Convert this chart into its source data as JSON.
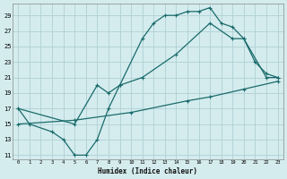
{
  "xlabel": "Humidex (Indice chaleur)",
  "bg_color": "#d4ecee",
  "grid_color": "#b0d0d4",
  "line_color": "#1a6b6b",
  "xlim": [
    -0.5,
    23.5
  ],
  "ylim": [
    10.5,
    30.5
  ],
  "xticks": [
    0,
    1,
    2,
    3,
    4,
    5,
    6,
    7,
    8,
    9,
    10,
    11,
    12,
    13,
    14,
    15,
    16,
    17,
    18,
    19,
    20,
    21,
    22,
    23
  ],
  "yticks": [
    11,
    13,
    15,
    17,
    19,
    21,
    23,
    25,
    27,
    29
  ],
  "line1_x": [
    0,
    1,
    3,
    4,
    5,
    6,
    7,
    8,
    9,
    11,
    12,
    13,
    14,
    15,
    16,
    17,
    18,
    19,
    20,
    21,
    22,
    23
  ],
  "line1_y": [
    17,
    15,
    14,
    13,
    11,
    11,
    13,
    17,
    20,
    26,
    28,
    29,
    29,
    29.5,
    29.5,
    30,
    28,
    27.5,
    26,
    23,
    21.5,
    21
  ],
  "line2_x": [
    0,
    5,
    7,
    8,
    9,
    11,
    14,
    17,
    19,
    20,
    22,
    23
  ],
  "line2_y": [
    17,
    15,
    20,
    19,
    20,
    21,
    24,
    28,
    26,
    26,
    21,
    21
  ],
  "line3_x": [
    0,
    5,
    10,
    15,
    17,
    20,
    23
  ],
  "line3_y": [
    15,
    15.5,
    16.5,
    18,
    18.5,
    19.5,
    20.5
  ]
}
